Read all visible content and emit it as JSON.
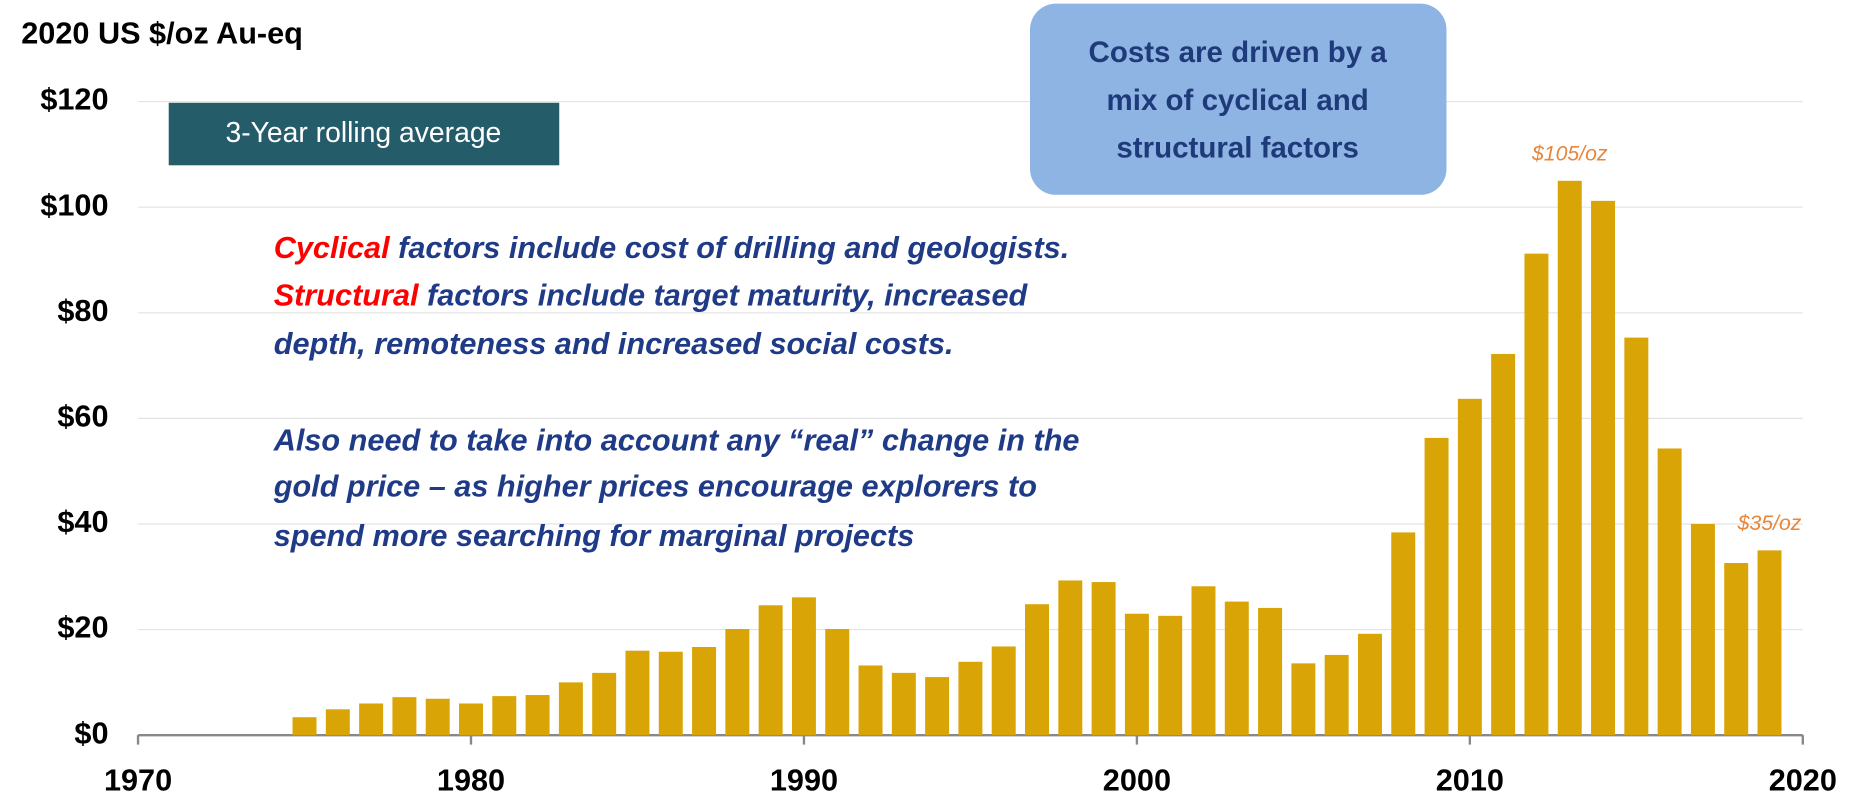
{
  "chart_data": {
    "type": "bar",
    "title": "2020 US $/oz Au-eq",
    "x": [
      1975,
      1976,
      1977,
      1978,
      1979,
      1980,
      1981,
      1982,
      1983,
      1984,
      1985,
      1986,
      1987,
      1988,
      1989,
      1990,
      1991,
      1992,
      1993,
      1994,
      1995,
      1996,
      1997,
      1998,
      1999,
      2000,
      2001,
      2002,
      2003,
      2004,
      2005,
      2006,
      2007,
      2008,
      2009,
      2010,
      2011,
      2012,
      2013,
      2014,
      2015,
      2016,
      2017,
      2018,
      2019
    ],
    "values": [
      3.4,
      4.9,
      6,
      7.2,
      6.9,
      6,
      7.4,
      7.6,
      10,
      11.8,
      16,
      15.8,
      16.7,
      20.1,
      24.6,
      26.1,
      20.1,
      13.2,
      11.8,
      11,
      13.9,
      16.8,
      24.8,
      29.3,
      29,
      23,
      22.6,
      28.2,
      25.3,
      24.1,
      13.6,
      15.2,
      19.2,
      38.4,
      56.3,
      63.7,
      72.2,
      91.2,
      105,
      101.2,
      75.3,
      54.3,
      40,
      32.6,
      35
    ],
    "color": "#d9a406",
    "xlim": [
      1970,
      2020
    ],
    "xticks": [
      1970,
      1980,
      1990,
      2000,
      2010,
      2020
    ],
    "ylim": [
      0,
      120
    ],
    "yticks": [
      {
        "value": 0,
        "label": "$0"
      },
      {
        "value": 20,
        "label": "$20"
      },
      {
        "value": 40,
        "label": "$40"
      },
      {
        "value": 60,
        "label": "$60"
      },
      {
        "value": 80,
        "label": "$80"
      },
      {
        "value": 100,
        "label": "$100"
      },
      {
        "value": 120,
        "label": "$120"
      }
    ],
    "grid": true,
    "legend_box": "3-Year rolling average",
    "callout": [
      "Costs are driven by a",
      "mix of cyclical and",
      "structural factors"
    ],
    "notes": [
      [
        {
          "text": "Cyclical",
          "color": "#ff0000"
        },
        {
          "text": " factors include cost of drilling and geologists.",
          "color": "#1f3a86"
        }
      ],
      [
        {
          "text": "Structural",
          "color": "#ff0000"
        },
        {
          "text": " factors include target maturity, increased",
          "color": "#1f3a86"
        }
      ],
      [
        {
          "text": "depth, remoteness and increased social costs.",
          "color": "#1f3a86"
        }
      ],
      [
        {
          "text": "Also need to take into account any “real” change in the",
          "color": "#1f3a86"
        }
      ],
      [
        {
          "text": "gold price – as higher prices encourage explorers to",
          "color": "#1f3a86"
        }
      ],
      [
        {
          "text": "spend more searching for marginal projects",
          "color": "#1f3a86"
        }
      ]
    ],
    "annotations": [
      {
        "text": "$105/oz",
        "x": 2013,
        "y": 105
      },
      {
        "text": "$35/oz",
        "x": 2019,
        "y": 35
      }
    ]
  }
}
